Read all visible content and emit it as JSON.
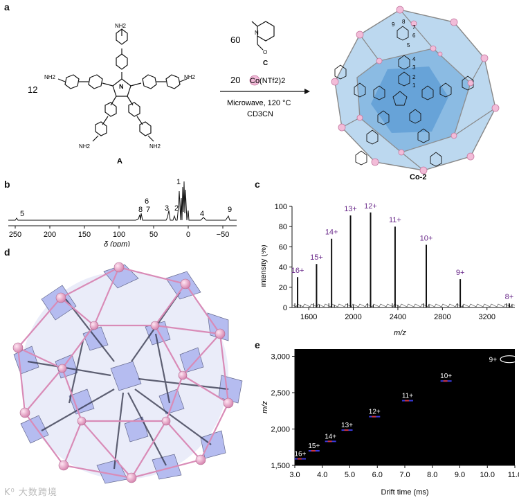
{
  "panels": {
    "a": "a",
    "b": "b",
    "c": "c",
    "d": "d",
    "e": "e"
  },
  "scheme": {
    "reactant_count_A": "12",
    "compound_A": "A",
    "amine_label": "NH2",
    "count_C": "60",
    "compound_C": "C",
    "count_Co": "20",
    "cobalt_salt": "Co(NTf2)2",
    "condition_1": "Microwave, 120 °C",
    "condition_2": "CD3CN",
    "product": "Co-2",
    "atom_numbers": [
      "9",
      "8",
      "7",
      "6",
      "5",
      "4",
      "3",
      "2",
      "1"
    ]
  },
  "nmr": {
    "xlabel": "δ (ppm)",
    "ticks": [
      "250",
      "200",
      "150",
      "100",
      "50",
      "0",
      "−50"
    ],
    "peak_labels": [
      {
        "label": "5",
        "ppm": 240
      },
      {
        "label": "8",
        "ppm": 65
      },
      {
        "label": "7",
        "ppm": 62
      },
      {
        "label": "6",
        "ppm": 62
      },
      {
        "label": "3",
        "ppm": 27
      },
      {
        "label": "2",
        "ppm": 21
      },
      {
        "label": "1",
        "ppm": 8
      },
      {
        "label": "4",
        "ppm": -20
      },
      {
        "label": "9",
        "ppm": -60
      }
    ]
  },
  "chart_data": [
    {
      "type": "bar",
      "title": "",
      "xlabel": "m/z",
      "ylabel": "Intensity (%)",
      "xlim": [
        1450,
        3450
      ],
      "ylim": [
        0,
        100
      ],
      "xticks": [
        "1600",
        "2000",
        "2400",
        "2800",
        "3200"
      ],
      "yticks": [
        "0",
        "20",
        "40",
        "60",
        "80",
        "100"
      ],
      "peaks": [
        {
          "label": "16+",
          "mz": 1500,
          "intensity": 30
        },
        {
          "label": "15+",
          "mz": 1670,
          "intensity": 43
        },
        {
          "label": "14+",
          "mz": 1805,
          "intensity": 68
        },
        {
          "label": "13+",
          "mz": 1975,
          "intensity": 91
        },
        {
          "label": "12+",
          "mz": 2155,
          "intensity": 94
        },
        {
          "label": "11+",
          "mz": 2375,
          "intensity": 80
        },
        {
          "label": "10+",
          "mz": 2655,
          "intensity": 62
        },
        {
          "label": "9+",
          "mz": 2960,
          "intensity": 28
        },
        {
          "label": "8+",
          "mz": 3400,
          "intensity": 4
        }
      ]
    },
    {
      "type": "scatter",
      "title": "",
      "xlabel": "Drift time (ms)",
      "ylabel": "m/z",
      "xlim": [
        3.0,
        11.0
      ],
      "ylim": [
        1500,
        3100
      ],
      "xticks": [
        "3.0",
        "4.0",
        "5.0",
        "6.0",
        "7.0",
        "8.0",
        "9.0",
        "10.0",
        "11.0"
      ],
      "yticks": [
        "1,500",
        "2,000",
        "2,500",
        "3,000"
      ],
      "points": [
        {
          "label": "16+",
          "drift": 3.2,
          "mz": 1590
        },
        {
          "label": "15+",
          "drift": 3.7,
          "mz": 1700
        },
        {
          "label": "14+",
          "drift": 4.3,
          "mz": 1830
        },
        {
          "label": "13+",
          "drift": 4.9,
          "mz": 1985
        },
        {
          "label": "12+",
          "drift": 5.9,
          "mz": 2170
        },
        {
          "label": "11+",
          "drift": 7.1,
          "mz": 2390
        },
        {
          "label": "10+",
          "drift": 8.5,
          "mz": 2660
        },
        {
          "label": "9+",
          "drift": 10.8,
          "mz": 2960
        }
      ]
    }
  ],
  "watermark": "K⁰ 大数跨境",
  "colors": {
    "pink": "#e8a5c8",
    "lavender": "#9fa8e8",
    "cage_blue": "#4a90d0",
    "ims_bg": "#000000",
    "purple_label": "#6a2a8a"
  }
}
